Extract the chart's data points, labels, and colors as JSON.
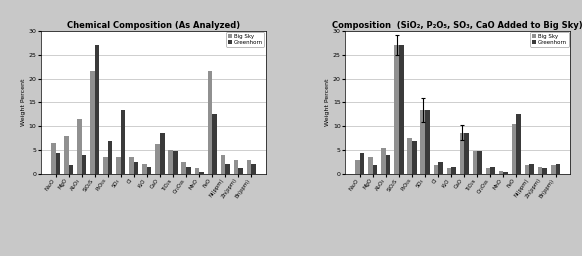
{
  "categories": [
    "Na₂O",
    "MgO",
    "Al₂O₃",
    "SiO₂S",
    "P₂O₅s",
    "SO₃",
    "Cl",
    "K₂O",
    "CaO",
    "TiO₂s",
    "Cr₂O₃s",
    "MnO",
    "FeO",
    "Ni(ppm)",
    "Zn(ppm)",
    "Br(ppm)"
  ],
  "big_sky_1": [
    6.5,
    8.0,
    11.5,
    21.5,
    3.5,
    3.5,
    3.5,
    2.2,
    6.2,
    5.0,
    2.5,
    1.2,
    21.5,
    4.0,
    3.0,
    3.0
  ],
  "greenhorn_1": [
    4.5,
    2.0,
    4.0,
    27.0,
    7.0,
    13.5,
    2.5,
    1.5,
    8.5,
    4.8,
    1.5,
    0.4,
    12.5,
    2.2,
    1.2,
    2.2
  ],
  "big_sky_2": [
    3.0,
    3.5,
    5.5,
    27.0,
    7.5,
    13.5,
    2.0,
    1.3,
    8.7,
    4.8,
    1.3,
    0.6,
    10.5,
    1.8,
    1.5,
    1.8
  ],
  "greenhorn_2": [
    4.5,
    2.0,
    4.0,
    27.0,
    7.0,
    13.5,
    2.5,
    1.5,
    8.5,
    4.8,
    1.5,
    0.4,
    12.5,
    2.2,
    1.2,
    2.2
  ],
  "err2_idx": [
    3,
    5,
    8
  ],
  "err2_vals": [
    2.0,
    2.5,
    1.5
  ],
  "title1": "Chemical Composition (As Analyzed)",
  "title2": "Composition  (SiO₂, P₂O₅, SO₃, CaO Added to Big Sky)",
  "ylabel": "Weight Percent",
  "ylim": [
    0,
    30
  ],
  "yticks": [
    0,
    5,
    10,
    15,
    20,
    25,
    30
  ],
  "color_bigsky": "#909090",
  "color_greenhorn": "#3a3a3a",
  "legend_labels": [
    "Big Sky",
    "Greenhorn"
  ],
  "bg_color": "#c8c8c8"
}
